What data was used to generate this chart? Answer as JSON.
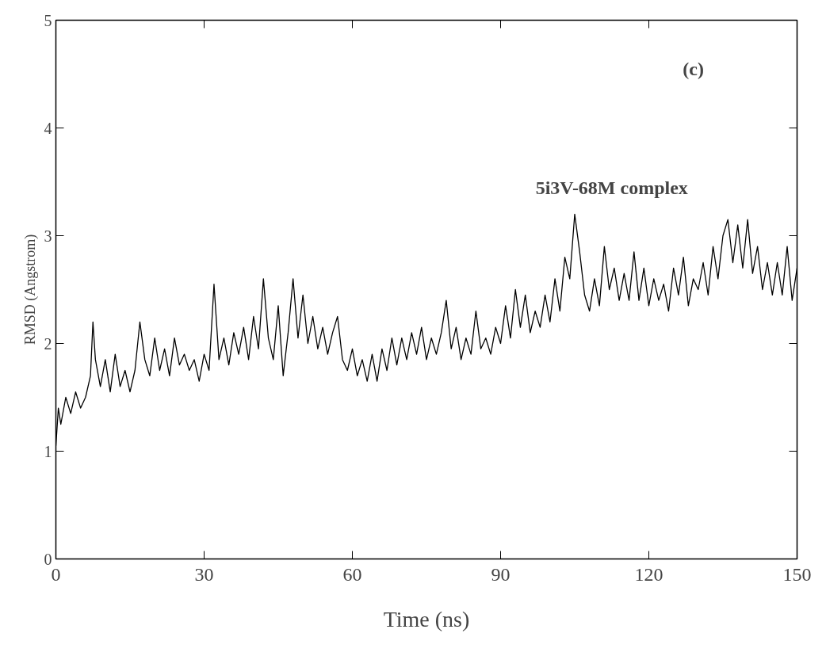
{
  "chart_data": {
    "type": "line",
    "xlabel": "Time (ns)",
    "ylabel": "RMSD (Angstrom)",
    "annotations": [
      "(c)",
      "5i3V-68M complex"
    ],
    "xlim": [
      0,
      150
    ],
    "ylim": [
      0,
      5
    ],
    "xticks": [
      0,
      30,
      60,
      90,
      120,
      150
    ],
    "yticks": [
      0,
      1,
      2,
      3,
      4,
      5
    ],
    "grid": false,
    "series": [
      {
        "color": "#000000",
        "x": [
          0,
          0.5,
          1,
          2,
          3,
          4,
          5,
          6,
          7,
          7.5,
          8,
          9,
          10,
          11,
          12,
          13,
          14,
          15,
          16,
          17,
          18,
          19,
          20,
          21,
          22,
          23,
          24,
          25,
          26,
          27,
          28,
          29,
          30,
          31,
          32,
          33,
          34,
          35,
          36,
          37,
          38,
          39,
          40,
          41,
          42,
          43,
          44,
          45,
          46,
          47,
          48,
          49,
          50,
          51,
          52,
          53,
          54,
          55,
          56,
          57,
          58,
          59,
          60,
          61,
          62,
          63,
          64,
          65,
          66,
          67,
          68,
          69,
          70,
          71,
          72,
          73,
          74,
          75,
          76,
          77,
          78,
          79,
          80,
          81,
          82,
          83,
          84,
          85,
          86,
          87,
          88,
          89,
          90,
          91,
          92,
          93,
          94,
          95,
          96,
          97,
          98,
          99,
          100,
          101,
          102,
          103,
          104,
          105,
          106,
          107,
          108,
          109,
          110,
          111,
          112,
          113,
          114,
          115,
          116,
          117,
          118,
          119,
          120,
          121,
          122,
          123,
          124,
          125,
          126,
          127,
          128,
          129,
          130,
          131,
          132,
          133,
          134,
          135,
          136,
          137,
          138,
          139,
          140,
          141,
          142,
          143,
          144,
          145,
          146,
          147,
          148,
          149,
          150
        ],
        "values": [
          1.05,
          1.4,
          1.25,
          1.5,
          1.35,
          1.55,
          1.4,
          1.5,
          1.7,
          2.2,
          1.85,
          1.6,
          1.85,
          1.55,
          1.9,
          1.6,
          1.75,
          1.55,
          1.75,
          2.2,
          1.85,
          1.7,
          2.05,
          1.75,
          1.95,
          1.7,
          2.05,
          1.8,
          1.9,
          1.75,
          1.85,
          1.65,
          1.9,
          1.75,
          2.55,
          1.85,
          2.05,
          1.8,
          2.1,
          1.9,
          2.15,
          1.85,
          2.25,
          1.95,
          2.6,
          2.05,
          1.85,
          2.35,
          1.7,
          2.1,
          2.6,
          2.05,
          2.45,
          2.0,
          2.25,
          1.95,
          2.15,
          1.9,
          2.1,
          2.25,
          1.85,
          1.75,
          1.95,
          1.7,
          1.85,
          1.65,
          1.9,
          1.65,
          1.95,
          1.75,
          2.05,
          1.8,
          2.05,
          1.85,
          2.1,
          1.9,
          2.15,
          1.85,
          2.05,
          1.9,
          2.1,
          2.4,
          1.95,
          2.15,
          1.85,
          2.05,
          1.9,
          2.3,
          1.95,
          2.05,
          1.9,
          2.15,
          2.0,
          2.35,
          2.05,
          2.5,
          2.15,
          2.45,
          2.1,
          2.3,
          2.15,
          2.45,
          2.2,
          2.6,
          2.3,
          2.8,
          2.6,
          3.2,
          2.85,
          2.45,
          2.3,
          2.6,
          2.35,
          2.9,
          2.5,
          2.7,
          2.4,
          2.65,
          2.4,
          2.85,
          2.4,
          2.7,
          2.35,
          2.6,
          2.4,
          2.55,
          2.3,
          2.7,
          2.45,
          2.8,
          2.35,
          2.6,
          2.5,
          2.75,
          2.45,
          2.9,
          2.6,
          3.0,
          3.15,
          2.75,
          3.1,
          2.7,
          3.15,
          2.65,
          2.9,
          2.5,
          2.75,
          2.45,
          2.75,
          2.45,
          2.9,
          2.4,
          2.7
        ]
      }
    ]
  }
}
